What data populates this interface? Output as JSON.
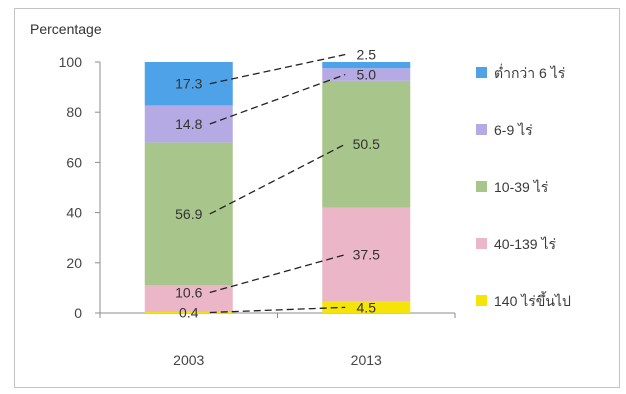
{
  "chart_data": {
    "type": "bar",
    "stacked": true,
    "ylabel": "Percentage",
    "categories": [
      "2003",
      "2013"
    ],
    "ylim": [
      0,
      100
    ],
    "yticks": [
      0,
      20,
      40,
      60,
      80,
      100
    ],
    "grid": false,
    "legend_position": "right",
    "series": [
      {
        "name": "140 ไร่ขึ้นไป",
        "values": [
          0.4,
          4.5
        ],
        "labels": [
          "0.4",
          "4.5"
        ],
        "color": "#f5e40a"
      },
      {
        "name": "40-139 ไร่",
        "values": [
          10.6,
          37.5
        ],
        "labels": [
          "10.6",
          "37.5"
        ],
        "color": "#ebb7c8"
      },
      {
        "name": "10-39 ไร่",
        "values": [
          56.9,
          50.5
        ],
        "labels": [
          "56.9",
          "50.5"
        ],
        "color": "#a8c68b"
      },
      {
        "name": "6-9 ไร่",
        "values": [
          14.8,
          5.0
        ],
        "labels": [
          "14.8",
          "5.0"
        ],
        "color": "#b5aae3"
      },
      {
        "name": "ต่ำกว่า 6 ไร่",
        "values": [
          17.3,
          2.5
        ],
        "labels": [
          "17.3",
          "2.5"
        ],
        "color": "#4ea2e8"
      }
    ]
  }
}
